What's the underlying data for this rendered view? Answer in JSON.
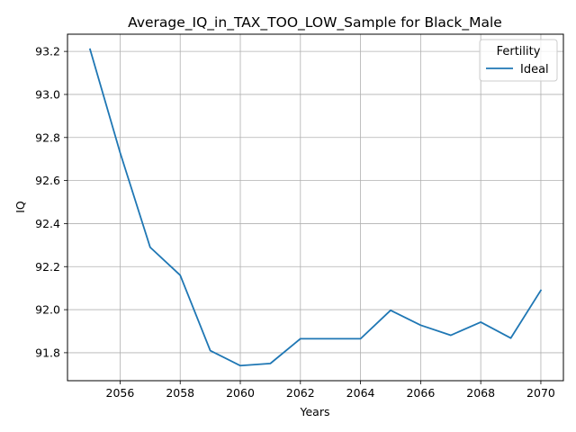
{
  "chart_data": {
    "type": "line",
    "title": "Average_IQ_in_TAX_TOO_LOW_Sample for Black_Male",
    "xlabel": "Years",
    "ylabel": "IQ",
    "xlim": [
      2054.25,
      2070.75
    ],
    "ylim": [
      91.67,
      93.28
    ],
    "xticks": [
      2056,
      2058,
      2060,
      2062,
      2064,
      2066,
      2068,
      2070
    ],
    "yticks": [
      91.8,
      92.0,
      92.2,
      92.4,
      92.6,
      92.8,
      93.0,
      93.2
    ],
    "grid": true,
    "legend": {
      "title": "Fertility",
      "placement": "upper-right",
      "entries": [
        "Ideal"
      ]
    },
    "x": [
      2055,
      2056,
      2057,
      2058,
      2059,
      2060,
      2061,
      2062,
      2063,
      2064,
      2065,
      2066,
      2067,
      2068,
      2069,
      2070
    ],
    "series": [
      {
        "name": "Ideal",
        "color": "#1f77b4",
        "values": [
          93.21,
          92.73,
          92.29,
          92.16,
          91.81,
          91.74,
          91.75,
          91.865,
          91.865,
          91.865,
          91.997,
          91.928,
          91.881,
          91.942,
          91.868,
          92.09
        ]
      }
    ]
  }
}
